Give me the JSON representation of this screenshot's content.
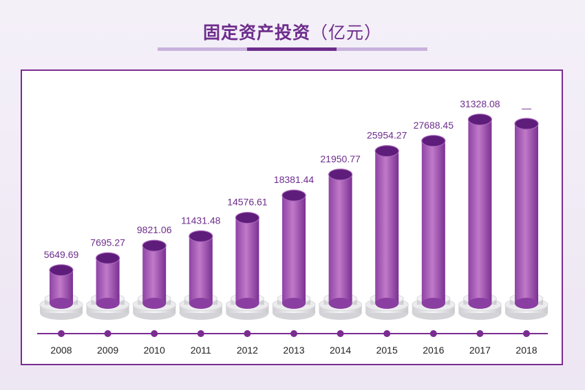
{
  "chart_data": {
    "type": "bar",
    "title": "固定资产投资",
    "unit": "（亿元）",
    "categories": [
      "2008",
      "2009",
      "2010",
      "2011",
      "2012",
      "2013",
      "2014",
      "2015",
      "2016",
      "2017",
      "2018"
    ],
    "values": [
      5649.69,
      7695.27,
      9821.06,
      11431.48,
      14576.61,
      18381.44,
      21950.77,
      25954.27,
      27688.45,
      31328.08,
      null
    ],
    "value_labels": [
      "5649.69",
      "7695.27",
      "9821.06",
      "11431.48",
      "14576.61",
      "18381.44",
      "21950.77",
      "25954.27",
      "27688.45",
      "31328.08",
      "—"
    ],
    "ylim": [
      0,
      34000
    ],
    "grid": false,
    "legend": "none",
    "style": "3d-cylinder"
  },
  "colors": {
    "accent": "#6d2d8c",
    "bar_light": "#c07ac8",
    "bar_dark": "#7e3596",
    "bar_top": "#5e1c7b",
    "label": "#6d2d8c",
    "axis": "#7a2c90"
  }
}
